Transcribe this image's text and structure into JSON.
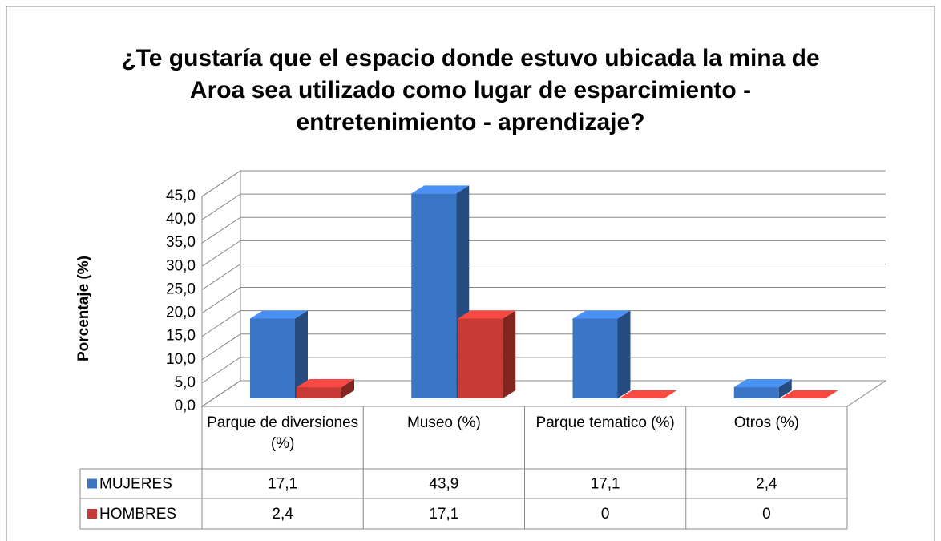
{
  "chart_data": {
    "type": "bar3d",
    "title": "¿Te gustaría que el espacio donde estuvo ubicada la mina de Aroa sea utilizado como lugar de esparcimiento - entretenimiento - aprendizaje?",
    "y_label": "Porcentaje (%)",
    "categories": [
      "Parque de diversiones (%)",
      "Museo (%)",
      "Parque tematico (%)",
      "Otros (%)"
    ],
    "series": [
      {
        "name": "MUJERES",
        "color": "#3a74c4",
        "values": [
          17.1,
          43.9,
          17.1,
          2.4
        ],
        "value_labels": [
          "17,1",
          "43,9",
          "17,1",
          "2,4"
        ]
      },
      {
        "name": "HOMBRES",
        "color": "#c83a35",
        "values": [
          2.4,
          17.1,
          0,
          0
        ],
        "value_labels": [
          "2,4",
          "17,1",
          "0",
          "0"
        ]
      }
    ],
    "ylim": [
      0,
      45
    ],
    "yticks": [
      {
        "value": 0,
        "label": "0,0"
      },
      {
        "value": 5,
        "label": "5,0"
      },
      {
        "value": 10,
        "label": "10,0"
      },
      {
        "value": 15,
        "label": "15,0"
      },
      {
        "value": 20,
        "label": "20,0"
      },
      {
        "value": 25,
        "label": "25,0"
      },
      {
        "value": 30,
        "label": "30,0"
      },
      {
        "value": 35,
        "label": "35,0"
      },
      {
        "value": 40,
        "label": "40,0"
      },
      {
        "value": 45,
        "label": "45,0"
      }
    ],
    "grid": true
  }
}
